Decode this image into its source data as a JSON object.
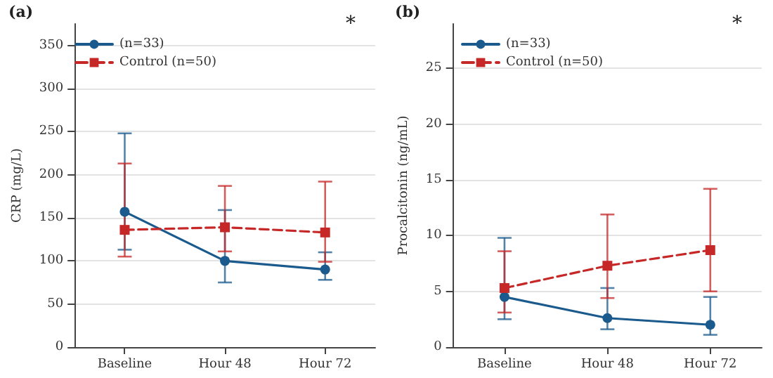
{
  "chart_data": [
    {
      "type": "line",
      "title": "(a)",
      "ylabel": "CRP (mg/L)",
      "categories": [
        "Baseline",
        "Hour 48",
        "Hour 72"
      ],
      "ylim": [
        0,
        375
      ],
      "yticks": [
        0,
        50,
        100,
        150,
        200,
        250,
        300,
        350
      ],
      "grid": "y",
      "legend": "top left",
      "annotations": [
        "*"
      ],
      "series": [
        {
          "name": "(n=33)",
          "color": "#1b5a8c",
          "marker": "circle",
          "line_style": "solid",
          "values": [
            157,
            100,
            90
          ],
          "errors": [
            [
              113,
              248
            ],
            [
              75,
              159
            ],
            [
              78,
              110
            ]
          ]
        },
        {
          "name": "Control (n=50)",
          "color": "#c62828",
          "marker": "square",
          "line_style": "dashed",
          "values": [
            136,
            139,
            133
          ],
          "errors": [
            [
              105,
              213
            ],
            [
              111,
              187
            ],
            [
              99,
              192
            ]
          ]
        }
      ]
    },
    {
      "type": "line",
      "title": "(b)",
      "ylabel": "Procalcitonin (ng/mL)",
      "categories": [
        "Baseline",
        "Hour 48",
        "Hour 72"
      ],
      "ylim": [
        0,
        29
      ],
      "yticks": [
        0,
        5,
        10,
        15,
        20,
        25
      ],
      "grid": "y",
      "legend": "top left",
      "annotations": [
        "*"
      ],
      "series": [
        {
          "name": "(n=33)",
          "color": "#1b5a8c",
          "marker": "circle",
          "line_style": "solid",
          "values": [
            4.5,
            2.6,
            2.0
          ],
          "errors": [
            [
              2.5,
              9.8
            ],
            [
              1.6,
              5.3
            ],
            [
              1.1,
              4.5
            ]
          ]
        },
        {
          "name": "Control (n=50)",
          "color": "#c62828",
          "marker": "square",
          "line_style": "dashed",
          "values": [
            5.3,
            7.3,
            8.7
          ],
          "errors": [
            [
              3.1,
              8.6
            ],
            [
              4.4,
              11.9
            ],
            [
              5.0,
              14.2
            ]
          ]
        }
      ]
    }
  ]
}
